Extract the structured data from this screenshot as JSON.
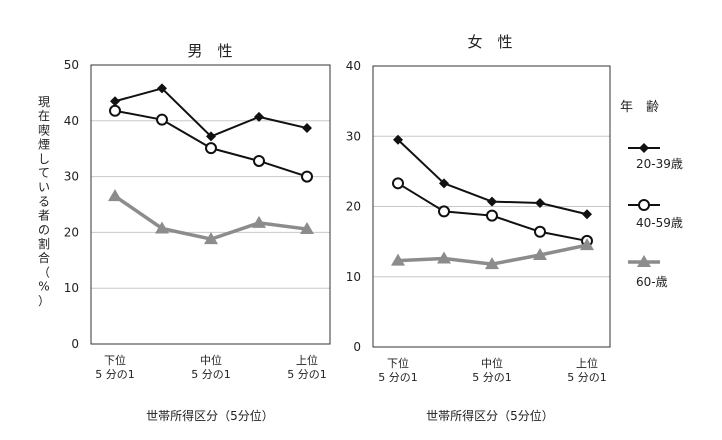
{
  "ylabel_chars": [
    "現",
    "在",
    "喫",
    "煙",
    "し",
    "て",
    "い",
    "る",
    "者",
    "の",
    "割",
    "合",
    "（",
    "%",
    "）"
  ],
  "x_tick_labels": {
    "low": [
      "下位",
      "5 分の1"
    ],
    "mid": [
      "中位",
      "5 分の1"
    ],
    "high": [
      "上位",
      "5 分の1"
    ]
  },
  "legend": {
    "title": "年　齢",
    "items": [
      {
        "label": "20-39歳",
        "marker": "diamond"
      },
      {
        "label": "40-59歳",
        "marker": "circle-open"
      },
      {
        "label": "60-歳",
        "marker": "triangle"
      }
    ]
  },
  "colors": {
    "dark_series": "#111111",
    "gray_series": "#8c8c8c",
    "grid": "#c8c8c8",
    "axis": "#333333"
  },
  "chart_data": [
    {
      "type": "line",
      "title": "男　性",
      "xlabel": "世帯所得区分（5分位）",
      "ylabel": "現在喫煙している者の割合（%）",
      "x": [
        1,
        2,
        3,
        4,
        5
      ],
      "ylim": [
        0,
        50
      ],
      "yticks": [
        0,
        10,
        20,
        30,
        40,
        50
      ],
      "grid": true,
      "series": [
        {
          "name": "20-39歳",
          "values": [
            43.5,
            45.8,
            37.2,
            40.7,
            38.7
          ]
        },
        {
          "name": "40-59歳",
          "values": [
            41.8,
            40.2,
            35.1,
            32.8,
            30.0
          ]
        },
        {
          "name": "60-歳",
          "values": [
            26.5,
            20.7,
            18.8,
            21.7,
            20.6
          ]
        }
      ]
    },
    {
      "type": "line",
      "title": "女　性",
      "xlabel": "世帯所得区分（5分位）",
      "x": [
        1,
        2,
        3,
        4,
        5
      ],
      "ylim": [
        0,
        40
      ],
      "yticks": [
        0,
        10,
        20,
        30,
        40
      ],
      "grid": true,
      "series": [
        {
          "name": "20-39歳",
          "values": [
            29.5,
            23.3,
            20.7,
            20.5,
            18.9
          ]
        },
        {
          "name": "40-59歳",
          "values": [
            23.3,
            19.3,
            18.7,
            16.4,
            15.1
          ]
        },
        {
          "name": "60-歳",
          "values": [
            12.3,
            12.6,
            11.8,
            13.1,
            14.5
          ]
        }
      ]
    }
  ]
}
